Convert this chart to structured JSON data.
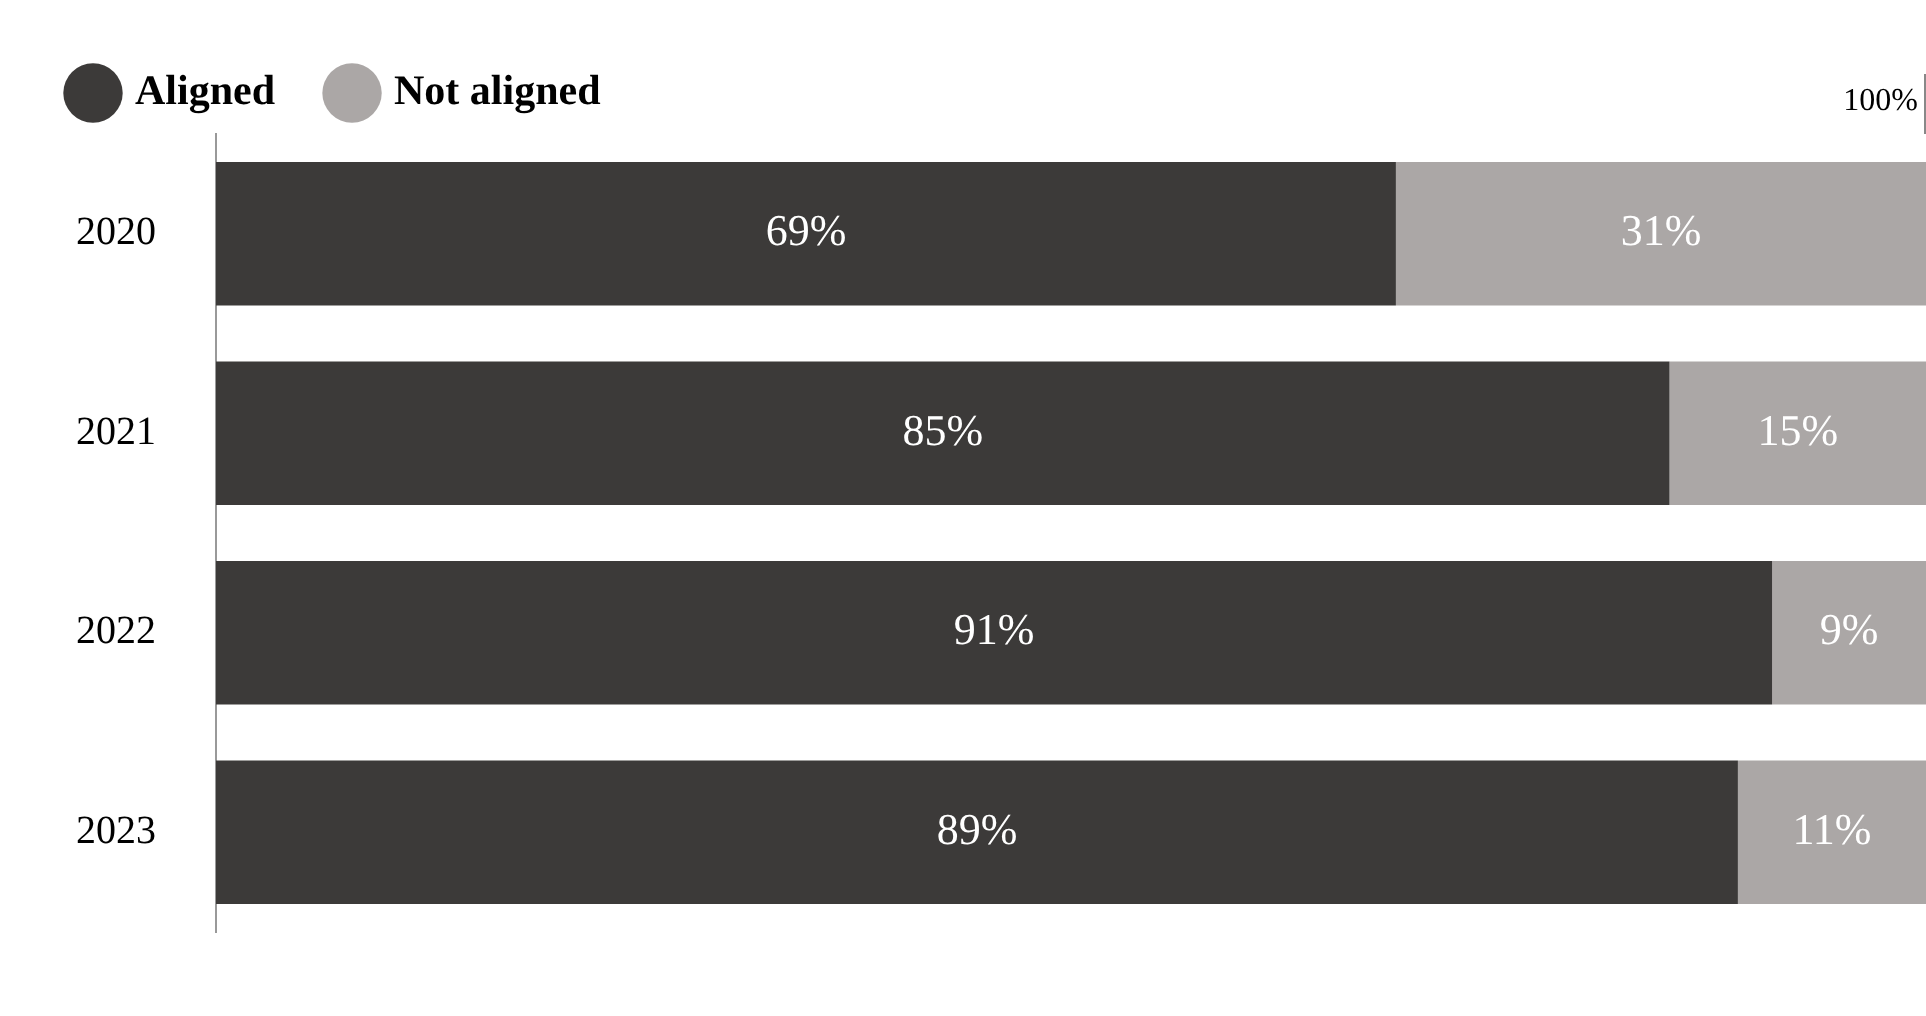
{
  "chart_data": {
    "type": "bar",
    "orientation": "horizontal",
    "stacked": true,
    "categories": [
      "2020",
      "2021",
      "2022",
      "2023"
    ],
    "series": [
      {
        "name": "Aligned",
        "color": "#3c3a39",
        "values": [
          69,
          85,
          91,
          89
        ],
        "value_labels": [
          "69%",
          "85%",
          "91%",
          "89%"
        ]
      },
      {
        "name": "Not aligned",
        "color": "#aba7a6",
        "values": [
          31,
          15,
          9,
          11
        ],
        "value_labels": [
          "31%",
          "15%",
          "9%",
          "11%"
        ]
      }
    ],
    "tick_labels": "y",
    "legend": "top left",
    "grid": false,
    "annotations": [
      "100%"
    ]
  }
}
